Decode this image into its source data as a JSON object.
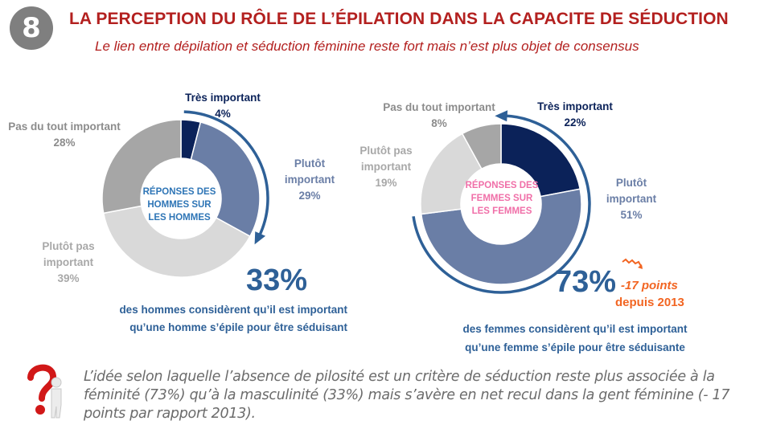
{
  "header": {
    "number": "8",
    "title": "LA PERCEPTION DU RÔLE DE L’ÉPILATION DANS LA CAPACITE DE SÉDUCTION",
    "subtitle": "Le lien entre dépilation et séduction féminine reste fort mais n’est plus objet de consensus"
  },
  "colors": {
    "title": "#b3201f",
    "tres_important": "#0b2259",
    "plutot_important": "#6a7ea6",
    "plutot_pas_important": "#d9d9d9",
    "pas_du_tout_important": "#a6a6a6",
    "accent_blue": "#2e6097",
    "men_center_text": "#2e75b6",
    "women_center_text": "#f06fa8",
    "delta_orange": "#f26522"
  },
  "chart_data": [
    {
      "type": "pie",
      "title": "RÉPONSES DES HOMMES SUR LES HOMMES",
      "categories": [
        "Très important",
        "Plutôt important",
        "Plutôt pas important",
        "Pas du tout important"
      ],
      "values": [
        4,
        29,
        39,
        28
      ],
      "unit": "%",
      "labels": [
        {
          "line1": "Très important",
          "line2": "",
          "value": "4%"
        },
        {
          "line1": "Plutôt",
          "line2": "important",
          "value": "29%"
        },
        {
          "line1": "Plutôt pas",
          "line2": "important",
          "value": "39%"
        },
        {
          "line1": "Pas du tout important",
          "line2": "",
          "value": "28%"
        }
      ],
      "center_lines": [
        "RÉPONSES DES",
        "HOMMES SUR",
        "LES HOMMES"
      ],
      "highlight_total": "33%",
      "caption": [
        "des hommes considèrent qu’il est important",
        "qu’une homme s’épile pour être séduisant"
      ]
    },
    {
      "type": "pie",
      "title": "RÉPONSES DES FEMMES SUR LES FEMMES",
      "categories": [
        "Très important",
        "Plutôt important",
        "Plutôt pas important",
        "Pas du tout important"
      ],
      "values": [
        22,
        51,
        19,
        8
      ],
      "unit": "%",
      "labels": [
        {
          "line1": "Très important",
          "line2": "",
          "value": "22%"
        },
        {
          "line1": "Plutôt",
          "line2": "important",
          "value": "51%"
        },
        {
          "line1": "Plutôt pas",
          "line2": "important",
          "value": "19%"
        },
        {
          "line1": "Pas du tout important",
          "line2": "",
          "value": "8%"
        }
      ],
      "center_lines": [
        "RÉPONSES DES",
        "FEMMES SUR",
        "LES FEMMES"
      ],
      "highlight_total": "73%",
      "delta": {
        "line1": "-17 points",
        "line2": "depuis 2013"
      },
      "caption": [
        "des femmes considèrent qu’il est important",
        "qu’une femme s’épile pour être séduisante"
      ]
    }
  ],
  "note": {
    "icon": "question-mark-person-icon",
    "text": "L’idée selon laquelle l’absence de pilosité est un critère de séduction reste plus associée à la féminité (73%) qu’à la masculinité (33%) mais s’avère en net recul dans la gent féminine (- 17 points par rapport 2013)."
  }
}
